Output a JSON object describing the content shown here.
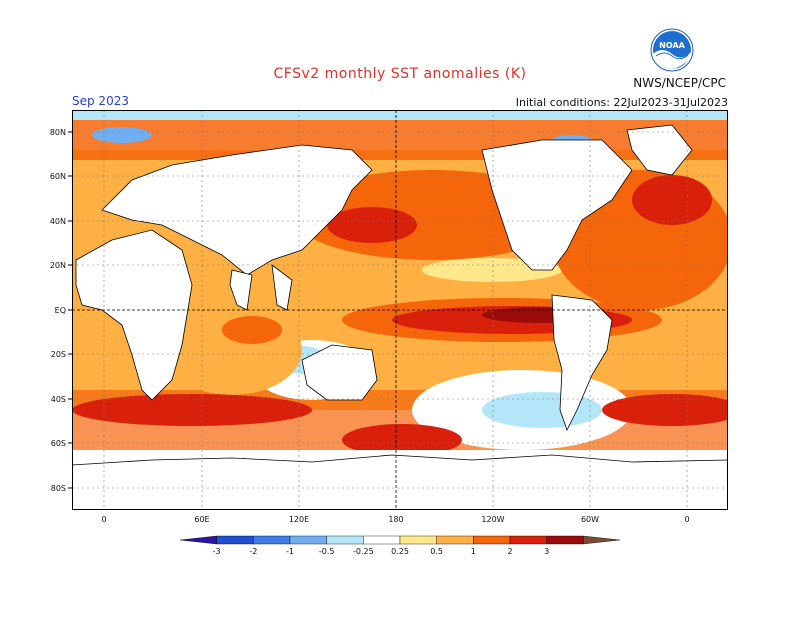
{
  "title": "CFSv2 monthly SST anomalies (K)",
  "agency": "NWS/NCEP/CPC",
  "period": "Sep 2023",
  "initial_conditions": "Initial conditions: 22Jul2023-31Jul2023",
  "logo_text": "NOAA",
  "lat_labels": [
    "80N",
    "60N",
    "40N",
    "20N",
    "EQ",
    "20S",
    "40S",
    "60S",
    "80S"
  ],
  "lon_labels": [
    "0",
    "60E",
    "120E",
    "180",
    "120W",
    "60W",
    "0"
  ],
  "legend": {
    "ticks": [
      "-3",
      "-2",
      "-1",
      "-0.5",
      "-0.25",
      "0.25",
      "0.5",
      "1",
      "2",
      "3"
    ],
    "colors": [
      "#2a14a8",
      "#1f4fd1",
      "#3f7ee8",
      "#6faef0",
      "#b4e6fa",
      "#ffffff",
      "#ffe88a",
      "#ffb043",
      "#f5650a",
      "#d8200a",
      "#9c0a0a",
      "#7a4a32"
    ]
  }
}
